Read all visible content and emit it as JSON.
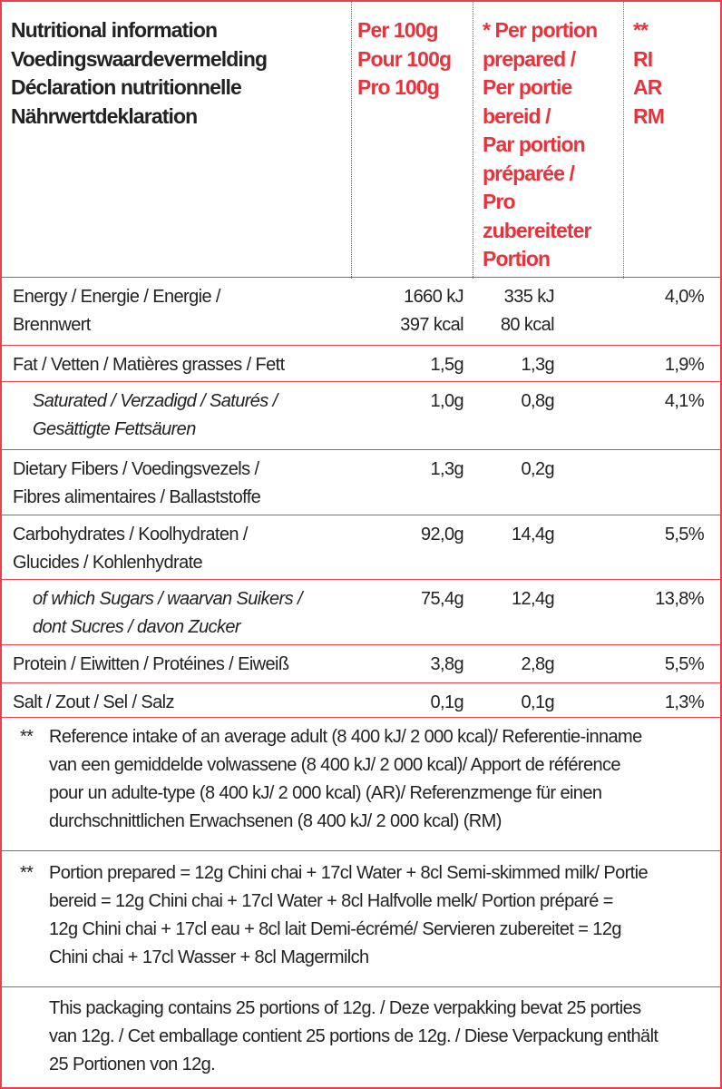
{
  "header": {
    "title": [
      "Nutritional information",
      "Voedingswaardevermelding",
      "Déclaration nutritionnelle",
      "Nährwertdeklaration"
    ],
    "per_100g": [
      "Per 100g",
      "Pour 100g",
      "Pro 100g"
    ],
    "per_portion": [
      "* Per portion",
      "prepared /",
      "Per portie",
      "bereid /",
      "Par portion",
      "préparée /",
      "Pro",
      "zubereiteter",
      "Portion"
    ],
    "ri": [
      "**",
      "RI",
      "AR",
      "RM"
    ]
  },
  "rows": [
    {
      "label": [
        "Energy / Energie / Energie /",
        "Brennwert"
      ],
      "per_100g": [
        "1660 kJ",
        "397 kcal"
      ],
      "per_portion": [
        "335 kJ",
        "80 kcal"
      ],
      "ri": "4,0%"
    },
    {
      "label": [
        "Fat / Vetten / Matières grasses / Fett"
      ],
      "per_100g": [
        "1,5g"
      ],
      "per_portion": [
        "1,3g"
      ],
      "ri": "1,9%"
    },
    {
      "label": [
        "Saturated / Verzadigd / Saturés /",
        "Gesättigte Fettsäuren"
      ],
      "per_100g": [
        "1,0g"
      ],
      "per_portion": [
        "0,8g"
      ],
      "ri": "4,1%"
    },
    {
      "label": [
        "Dietary Fibers / Voedingsvezels /",
        "Fibres alimentaires / Ballaststoffe"
      ],
      "per_100g": [
        "1,3g"
      ],
      "per_portion": [
        "0,2g"
      ]
    },
    {
      "label": [
        "Carbohydrates / Koolhydraten /",
        "Glucides / Kohlenhydrate"
      ],
      "per_100g": [
        "92,0g"
      ],
      "per_portion": [
        "14,4g"
      ],
      "ri": "5,5%"
    },
    {
      "label": [
        "of which Sugars / waarvan Suikers /",
        "dont Sucres / davon Zucker"
      ],
      "per_100g": [
        "75,4g"
      ],
      "per_portion": [
        "12,4g"
      ],
      "ri": "13,8%"
    },
    {
      "label": [
        "Protein / Eiwitten / Protéines / Eiweiß"
      ],
      "per_100g": [
        "3,8g"
      ],
      "per_portion": [
        "2,8g"
      ],
      "ri": "5,5%"
    },
    {
      "label": [
        "Salt / Zout / Sel / Salz"
      ],
      "per_100g": [
        "0,1g"
      ],
      "per_portion": [
        "0,1g"
      ],
      "ri": "1,3%"
    }
  ],
  "notes": [
    {
      "marker": "**",
      "lines": [
        "Reference intake of an average adult (8 400 kJ/ 2 000 kcal)/ Referentie-inname",
        "van een gemiddelde volwassene (8 400 kJ/ 2 000 kcal)/ Apport de référence",
        "pour un adulte-type (8 400 kJ/ 2 000 kcal) (AR)/ Referenzmenge für einen",
        "durchschnittlichen Erwachsenen (8 400 kJ/ 2 000 kcal) (RM)"
      ]
    },
    {
      "marker": "**",
      "lines": [
        "Portion prepared = 12g Chini chai + 17cl Water + 8cl Semi-skimmed milk/ Portie",
        "bereid = 12g Chini chai + 17cl Water + 8cl Halfvolle melk/ Portion préparé =",
        "12g Chini chai + 17cl eau + 8cl lait Demi-écrémé/ Servieren zubereitet = 12g",
        "Chini chai + 17cl Wasser + 8cl Magermilch"
      ]
    }
  ],
  "packaging": [
    "This packaging contains 25 portions of 12g. / Deze verpakking bevat 25 porties",
    "van 12g. / Cet emballage contient 25 portions de 12g. / Diese Verpackung enthält",
    "25 Portionen von 12g."
  ]
}
